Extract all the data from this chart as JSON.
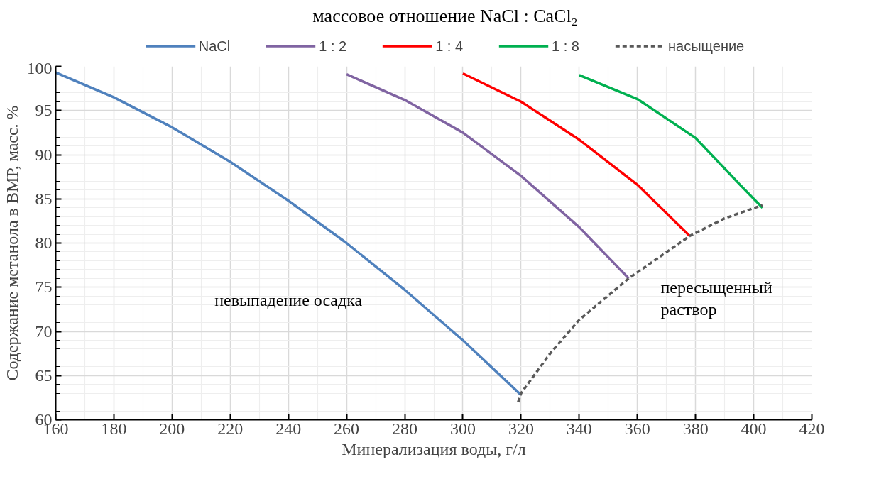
{
  "chart_data": {
    "type": "line",
    "title": "массовое отношение NaCl : CaCl₂",
    "xlabel": "Минерализация воды, г/л",
    "ylabel": "Содержание метанола в ВМР, масс. %",
    "xlim": [
      160,
      420
    ],
    "xticks": [
      160,
      180,
      200,
      220,
      240,
      260,
      280,
      300,
      320,
      340,
      360,
      380,
      400,
      420
    ],
    "ylim": [
      60,
      100
    ],
    "yticks": [
      60,
      65,
      70,
      75,
      80,
      85,
      90,
      95,
      100
    ],
    "grid": true,
    "legend": "top",
    "line_style": "solid",
    "marker": "none",
    "series": [
      {
        "name": "NaCl",
        "color": "#4f81bd",
        "x": [
          160,
          180,
          200,
          220,
          240,
          260,
          280,
          300,
          320
        ],
        "values": [
          99.3,
          96.5,
          93.1,
          89.2,
          84.8,
          80.0,
          74.7,
          69.0,
          62.8
        ]
      },
      {
        "name": "1 : 2",
        "color": "#8064a2",
        "x": [
          260,
          280,
          300,
          320,
          340,
          357
        ],
        "values": [
          99.1,
          96.2,
          92.5,
          87.6,
          81.8,
          76.0
        ]
      },
      {
        "name": "1 : 4",
        "color": "#ff0000",
        "x": [
          300,
          320,
          340,
          360,
          378
        ],
        "values": [
          99.2,
          96.0,
          91.7,
          86.6,
          80.8
        ]
      },
      {
        "name": "1 : 8",
        "color": "#00b050",
        "x": [
          340,
          360,
          380,
          395,
          403
        ],
        "values": [
          99.0,
          96.3,
          91.9,
          86.7,
          84.0
        ]
      },
      {
        "name": "насыщение",
        "color": "#595959",
        "line_style": "dashed",
        "x": [
          319,
          320,
          330,
          340,
          357,
          378,
          390,
          403
        ],
        "values": [
          62.0,
          63.0,
          67.5,
          71.3,
          76.0,
          80.8,
          82.8,
          84.3
        ]
      }
    ],
    "annotations": [
      "невыпадение осадка",
      "пересыщенный\nраствор"
    ]
  }
}
